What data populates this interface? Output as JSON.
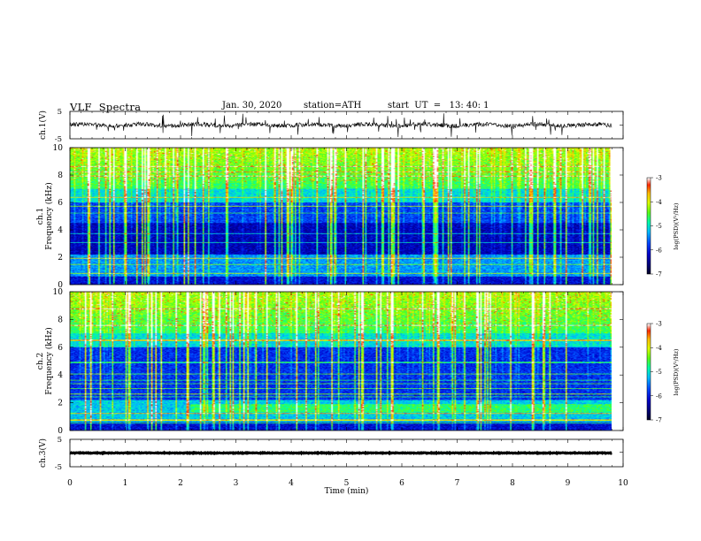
{
  "header": {
    "title": "VLF  Spectra",
    "date": "Jan. 30, 2020",
    "station": "station=ATH",
    "start": "start  UT  =   13: 40: 1"
  },
  "chart_data": {
    "type": "heatmap",
    "xlabel": "Time (min)",
    "xlim": [
      0,
      10
    ],
    "x_ticks": [
      "0",
      "1",
      "2",
      "3",
      "4",
      "5",
      "6",
      "7",
      "8",
      "9",
      "10"
    ],
    "panels": [
      {
        "name": "ch1_waveform",
        "type": "line",
        "ylabel": "ch.1(V)",
        "ylim": [
          -5,
          5
        ],
        "y_ticks": [
          "5",
          "-5"
        ]
      },
      {
        "name": "ch1_spectrogram",
        "type": "heatmap",
        "ylabel_top": "ch.1",
        "ylabel": "Frequency (kHz)",
        "ylim": [
          0,
          10
        ],
        "y_ticks": [
          "0",
          "2",
          "4",
          "6",
          "8",
          "10"
        ]
      },
      {
        "name": "ch2_spectrogram",
        "type": "heatmap",
        "ylabel_top": "ch.2",
        "ylabel": "Frequency (kHz)",
        "ylim": [
          0,
          10
        ],
        "y_ticks": [
          "0",
          "2",
          "4",
          "6",
          "8",
          "10"
        ]
      },
      {
        "name": "ch3_waveform",
        "type": "line",
        "ylabel": "ch.3(V)",
        "ylim": [
          -5,
          5
        ],
        "y_ticks": [
          "5",
          "-5"
        ]
      }
    ],
    "colorbar": {
      "label": "log(PSD)(V²/Hz)",
      "range": [
        -7,
        -3
      ],
      "ticks": [
        "-3",
        "-4",
        "-5",
        "-6",
        "-7"
      ],
      "colors": [
        "#000040",
        "#0000c0",
        "#0050ff",
        "#00c0ff",
        "#00ff90",
        "#60ff00",
        "#e0ff00",
        "#ffc000",
        "#ff3000",
        "#ffffff"
      ]
    }
  }
}
